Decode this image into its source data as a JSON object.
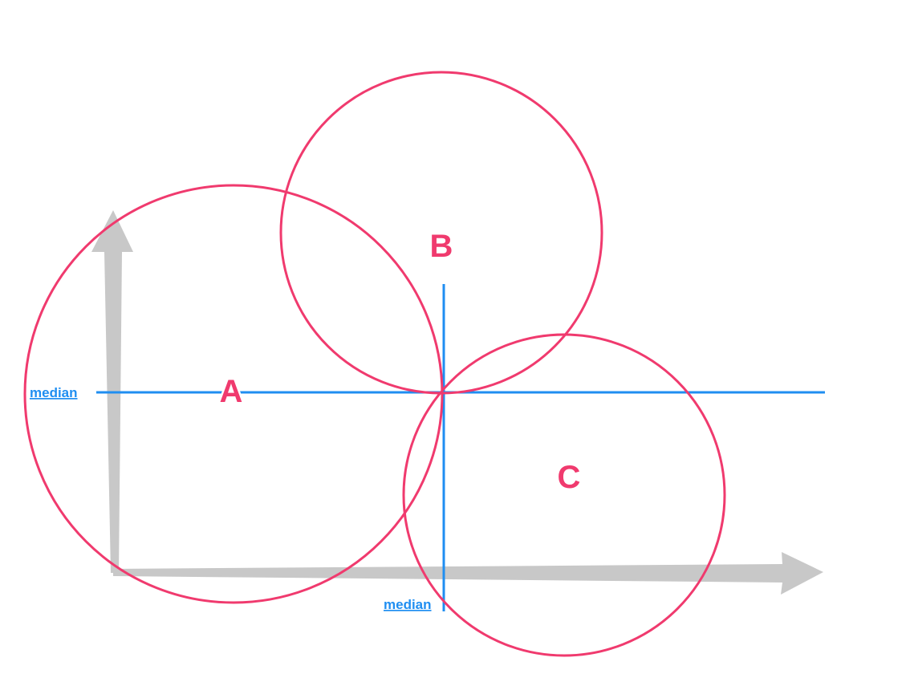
{
  "colors": {
    "axis": "#c8c8c8",
    "median": "#1f8ef1",
    "cluster": "#f03a6e"
  },
  "median_labels": {
    "horizontal": "median",
    "vertical": "median"
  },
  "clusters": [
    {
      "label": "A"
    },
    {
      "label": "B"
    },
    {
      "label": "C"
    }
  ]
}
